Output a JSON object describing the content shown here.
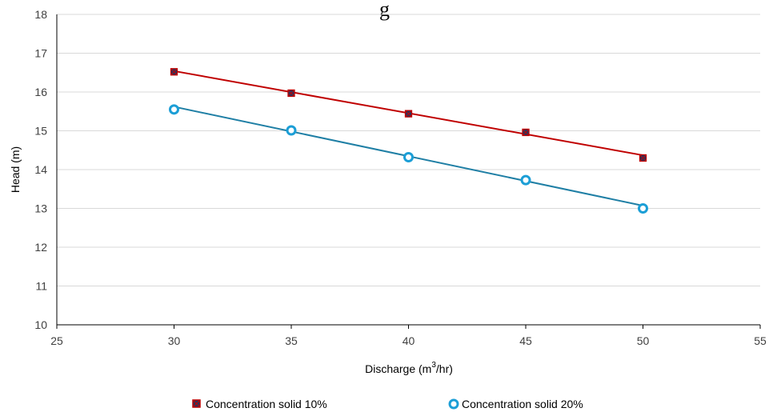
{
  "chart_data": {
    "type": "scatter",
    "title": "",
    "title_fragment": "g",
    "xlabel": "Discharge (m",
    "xlabel_sup": "3",
    "xlabel_tail": "/hr)",
    "ylabel": "Head (m)",
    "xlim": [
      25,
      55
    ],
    "ylim": [
      10,
      18
    ],
    "x_ticks": [
      25,
      30,
      35,
      40,
      45,
      50,
      55
    ],
    "y_ticks": [
      10,
      11,
      12,
      13,
      14,
      15,
      16,
      17,
      18
    ],
    "grid": "horizontal",
    "legend_position": "bottom",
    "series": [
      {
        "name": "Concentration solid 10%",
        "marker": "square-x",
        "color": "#c00000",
        "marker_color": "#1f3864",
        "x": [
          30,
          35,
          40,
          45,
          50
        ],
        "y": [
          16.52,
          15.97,
          15.44,
          14.96,
          14.3
        ],
        "trendline": {
          "x": [
            30,
            50
          ],
          "y": [
            16.54,
            14.37
          ]
        }
      },
      {
        "name": "Concentration solid 20%",
        "marker": "circle",
        "color": "#1f7fa5",
        "marker_color": "#1b9ed6",
        "x": [
          30,
          35,
          40,
          45,
          50
        ],
        "y": [
          15.55,
          15.01,
          14.32,
          13.73,
          13.0
        ],
        "trendline": {
          "x": [
            30,
            50
          ],
          "y": [
            15.62,
            13.07
          ]
        }
      }
    ]
  }
}
